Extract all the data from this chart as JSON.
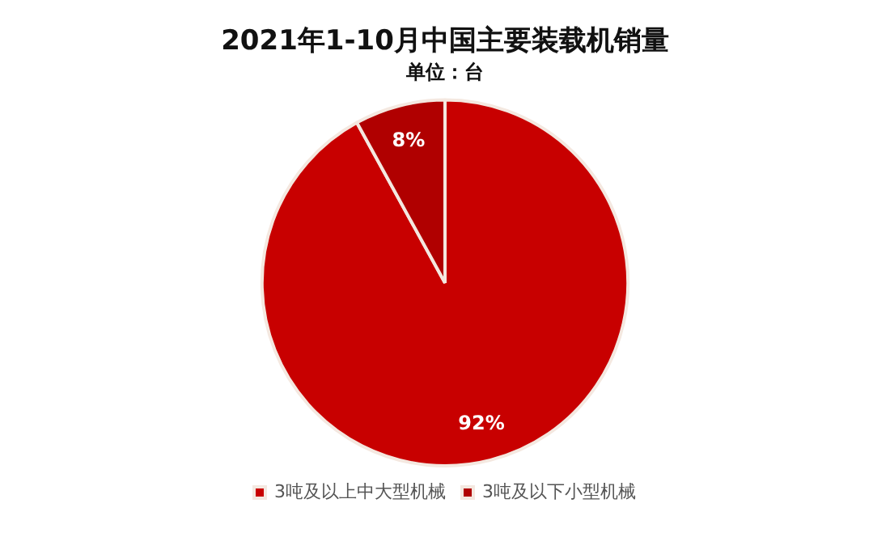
{
  "chart_data": {
    "type": "pie",
    "title": "2021年1-10月中国主要装载机销量",
    "subtitle": "单位：台",
    "categories": [
      "3吨及以上中大型机械",
      "3吨及以下小型机械"
    ],
    "values": [
      92,
      8
    ],
    "colors": [
      "#c80000",
      "#b00000"
    ],
    "value_labels": [
      "92%",
      "8%"
    ],
    "legend": "bottom"
  }
}
